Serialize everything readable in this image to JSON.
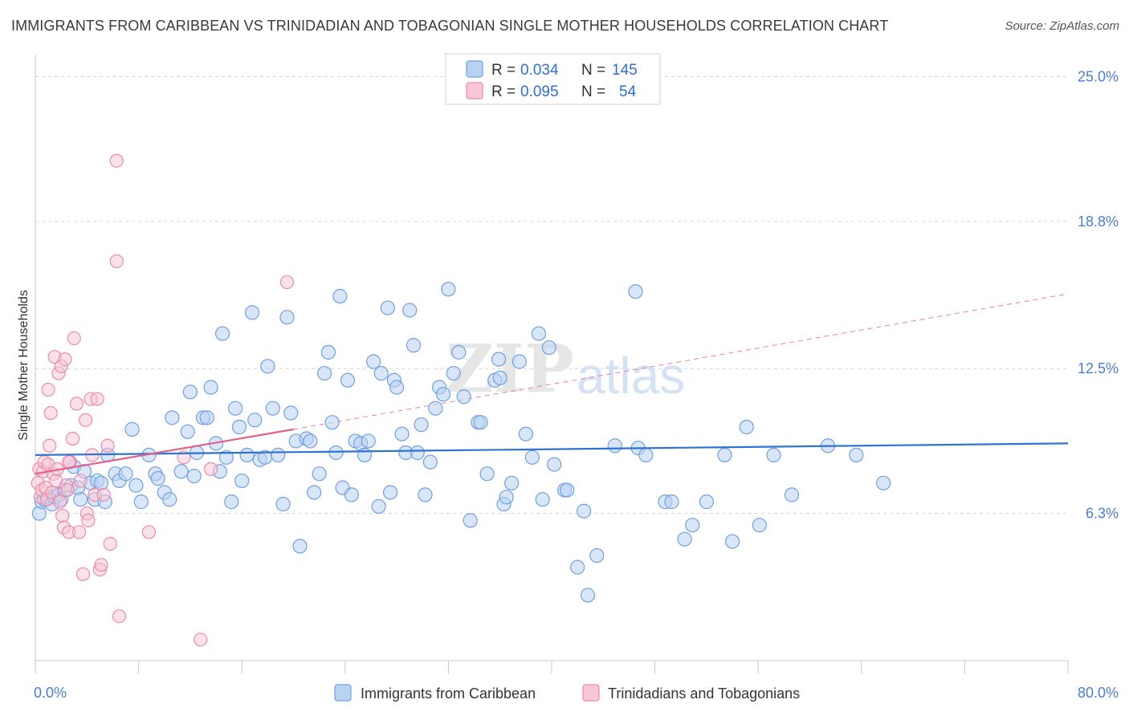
{
  "title": "IMMIGRANTS FROM CARIBBEAN VS TRINIDADIAN AND TOBAGONIAN SINGLE MOTHER HOUSEHOLDS CORRELATION CHART",
  "source": "Source: ZipAtlas.com",
  "watermark": {
    "zip": "ZIP",
    "atlas": "atlas"
  },
  "colors": {
    "blue": "#6fa0e0",
    "blue_fill": "#b9d2f2",
    "blue_line": "#2f73d0",
    "pink": "#ec8aaa",
    "pink_fill": "#f8c6d6",
    "pink_line": "#e0628c",
    "grid": "#d6d6d6",
    "tick_text": "#4a7fd0"
  },
  "legend": {
    "rows": [
      {
        "r_label": "R = ",
        "r_value": "0.034",
        "n_label": "N = ",
        "n_value": "145"
      },
      {
        "r_label": "R = ",
        "r_value": "0.095",
        "n_label": "N = ",
        "n_value": "54"
      }
    ]
  },
  "chart_data": {
    "type": "scatter",
    "title": "IMMIGRANTS FROM CARIBBEAN VS TRINIDADIAN AND TOBAGONIAN SINGLE MOTHER HOUSEHOLDS CORRELATION CHART",
    "xlabel": "",
    "ylabel": "Single Mother Households",
    "xlim": [
      0,
      80
    ],
    "ylim": [
      0,
      25.6
    ],
    "x_tick_labels": [
      "0.0%",
      "80.0%"
    ],
    "y_ticks": [
      6.3,
      12.5,
      18.8,
      25.0
    ],
    "y_tick_labels": [
      "6.3%",
      "12.5%",
      "18.8%",
      "25.0%"
    ],
    "grid": true,
    "legend_position": "top-center",
    "series": [
      {
        "name": "Immigrants from Caribbean",
        "color": "#6fa0e0",
        "r": 0.034,
        "n": 145,
        "trend": {
          "x": [
            0,
            80
          ],
          "y": [
            8.8,
            9.3
          ]
        },
        "points": [
          [
            0.3,
            6.3
          ],
          [
            0.5,
            6.8
          ],
          [
            0.7,
            6.9
          ],
          [
            1.0,
            7.0
          ],
          [
            1.3,
            6.7
          ],
          [
            1.5,
            7.0
          ],
          [
            1.8,
            7.1
          ],
          [
            2.0,
            6.9
          ],
          [
            2.3,
            7.3
          ],
          [
            2.8,
            7.5
          ],
          [
            3.0,
            8.3
          ],
          [
            3.3,
            7.4
          ],
          [
            3.5,
            6.9
          ],
          [
            3.8,
            8.1
          ],
          [
            4.3,
            7.6
          ],
          [
            4.6,
            6.9
          ],
          [
            4.8,
            7.7
          ],
          [
            5.1,
            7.6
          ],
          [
            5.4,
            6.8
          ],
          [
            5.6,
            8.8
          ],
          [
            6.2,
            8.0
          ],
          [
            6.5,
            7.7
          ],
          [
            7.0,
            8.0
          ],
          [
            7.5,
            9.9
          ],
          [
            7.8,
            7.5
          ],
          [
            8.2,
            6.8
          ],
          [
            8.8,
            8.8
          ],
          [
            9.3,
            8.0
          ],
          [
            9.5,
            7.8
          ],
          [
            10.0,
            7.2
          ],
          [
            10.4,
            6.9
          ],
          [
            10.6,
            10.4
          ],
          [
            11.3,
            8.1
          ],
          [
            11.8,
            9.8
          ],
          [
            12.0,
            11.5
          ],
          [
            12.3,
            7.9
          ],
          [
            12.5,
            8.9
          ],
          [
            13.0,
            10.4
          ],
          [
            13.3,
            10.4
          ],
          [
            13.6,
            11.7
          ],
          [
            14.0,
            9.3
          ],
          [
            14.3,
            8.1
          ],
          [
            14.5,
            14.0
          ],
          [
            14.8,
            8.7
          ],
          [
            15.2,
            6.8
          ],
          [
            15.5,
            10.8
          ],
          [
            15.8,
            10.0
          ],
          [
            16.0,
            7.7
          ],
          [
            16.4,
            8.8
          ],
          [
            16.8,
            14.9
          ],
          [
            17.0,
            10.3
          ],
          [
            17.4,
            8.6
          ],
          [
            17.8,
            8.7
          ],
          [
            18.0,
            12.6
          ],
          [
            18.4,
            10.8
          ],
          [
            18.8,
            8.8
          ],
          [
            19.2,
            6.7
          ],
          [
            19.5,
            14.7
          ],
          [
            19.8,
            10.6
          ],
          [
            20.2,
            9.4
          ],
          [
            20.5,
            4.9
          ],
          [
            21.0,
            9.5
          ],
          [
            21.3,
            9.4
          ],
          [
            21.6,
            7.2
          ],
          [
            22.0,
            8.0
          ],
          [
            22.4,
            12.3
          ],
          [
            22.7,
            13.2
          ],
          [
            23.0,
            10.2
          ],
          [
            23.3,
            8.9
          ],
          [
            23.6,
            15.6
          ],
          [
            23.8,
            7.4
          ],
          [
            24.2,
            12.0
          ],
          [
            24.5,
            7.1
          ],
          [
            24.8,
            9.4
          ],
          [
            25.2,
            9.3
          ],
          [
            25.5,
            8.8
          ],
          [
            25.8,
            9.4
          ],
          [
            26.2,
            12.8
          ],
          [
            26.6,
            6.6
          ],
          [
            26.8,
            12.3
          ],
          [
            27.3,
            15.1
          ],
          [
            27.5,
            7.2
          ],
          [
            27.8,
            12.0
          ],
          [
            28.0,
            11.7
          ],
          [
            28.4,
            9.7
          ],
          [
            28.7,
            8.9
          ],
          [
            29.0,
            15.0
          ],
          [
            29.3,
            13.5
          ],
          [
            29.6,
            8.9
          ],
          [
            29.9,
            10.1
          ],
          [
            30.2,
            7.1
          ],
          [
            30.6,
            8.5
          ],
          [
            31.0,
            10.8
          ],
          [
            31.3,
            11.7
          ],
          [
            31.6,
            11.4
          ],
          [
            32.0,
            15.9
          ],
          [
            32.4,
            12.3
          ],
          [
            32.8,
            13.2
          ],
          [
            33.2,
            11.3
          ],
          [
            33.7,
            6.0
          ],
          [
            34.3,
            10.2
          ],
          [
            34.5,
            10.2
          ],
          [
            35.0,
            8.0
          ],
          [
            35.6,
            12.0
          ],
          [
            35.9,
            12.9
          ],
          [
            36.0,
            12.1
          ],
          [
            36.3,
            6.7
          ],
          [
            36.5,
            7.0
          ],
          [
            36.9,
            7.6
          ],
          [
            37.5,
            12.8
          ],
          [
            38.0,
            9.7
          ],
          [
            38.5,
            8.7
          ],
          [
            39.0,
            14.0
          ],
          [
            39.3,
            6.9
          ],
          [
            39.8,
            13.4
          ],
          [
            40.2,
            8.4
          ],
          [
            41.0,
            7.3
          ],
          [
            41.2,
            7.3
          ],
          [
            42.0,
            4.0
          ],
          [
            42.5,
            6.4
          ],
          [
            42.8,
            2.8
          ],
          [
            43.5,
            4.5
          ],
          [
            44.9,
            9.2
          ],
          [
            46.5,
            15.8
          ],
          [
            46.7,
            9.1
          ],
          [
            47.3,
            8.8
          ],
          [
            48.8,
            6.8
          ],
          [
            49.3,
            6.8
          ],
          [
            50.3,
            5.2
          ],
          [
            50.9,
            5.8
          ],
          [
            52.0,
            6.8
          ],
          [
            53.4,
            8.8
          ],
          [
            54.0,
            5.1
          ],
          [
            55.1,
            10.0
          ],
          [
            56.1,
            5.8
          ],
          [
            57.2,
            8.8
          ],
          [
            58.6,
            7.1
          ],
          [
            61.4,
            9.2
          ],
          [
            63.6,
            8.8
          ],
          [
            65.7,
            7.6
          ]
        ]
      },
      {
        "name": "Trinidadians and Tobagonians",
        "color": "#ec8aaa",
        "r": 0.095,
        "n": 54,
        "trend": {
          "x": [
            0,
            20
          ],
          "y": [
            8.0,
            9.9
          ]
        },
        "trend_extension": {
          "x": [
            20,
            80
          ],
          "y": [
            9.9,
            15.7
          ]
        },
        "points": [
          [
            0.2,
            7.6
          ],
          [
            0.3,
            8.2
          ],
          [
            0.4,
            7.0
          ],
          [
            0.5,
            7.3
          ],
          [
            0.6,
            8.1
          ],
          [
            0.7,
            8.5
          ],
          [
            0.8,
            7.4
          ],
          [
            0.9,
            6.9
          ],
          [
            1.0,
            8.4
          ],
          [
            1.1,
            9.2
          ],
          [
            1.2,
            10.6
          ],
          [
            1.3,
            7.2
          ],
          [
            1.4,
            8.0
          ],
          [
            1.5,
            13.0
          ],
          [
            1.6,
            7.7
          ],
          [
            1.7,
            8.2
          ],
          [
            1.8,
            12.3
          ],
          [
            1.9,
            6.8
          ],
          [
            2.0,
            12.6
          ],
          [
            2.1,
            6.2
          ],
          [
            2.2,
            5.7
          ],
          [
            2.3,
            12.9
          ],
          [
            2.4,
            7.5
          ],
          [
            2.5,
            7.3
          ],
          [
            2.6,
            5.5
          ],
          [
            2.7,
            8.5
          ],
          [
            2.9,
            9.5
          ],
          [
            3.0,
            13.8
          ],
          [
            3.2,
            11.0
          ],
          [
            3.4,
            5.5
          ],
          [
            3.5,
            7.7
          ],
          [
            3.7,
            3.7
          ],
          [
            3.9,
            10.3
          ],
          [
            4.0,
            6.3
          ],
          [
            4.1,
            6.0
          ],
          [
            4.3,
            11.2
          ],
          [
            4.4,
            8.8
          ],
          [
            4.6,
            7.1
          ],
          [
            4.8,
            11.2
          ],
          [
            5.0,
            3.9
          ],
          [
            5.1,
            4.1
          ],
          [
            5.3,
            7.1
          ],
          [
            5.6,
            9.2
          ],
          [
            5.8,
            5.0
          ],
          [
            6.3,
            17.1
          ],
          [
            6.3,
            21.4
          ],
          [
            6.5,
            1.9
          ],
          [
            8.8,
            5.5
          ],
          [
            11.5,
            8.7
          ],
          [
            12.8,
            0.9
          ],
          [
            13.6,
            8.2
          ],
          [
            19.5,
            16.2
          ],
          [
            1.0,
            11.6
          ],
          [
            2.6,
            8.5
          ]
        ]
      }
    ]
  }
}
